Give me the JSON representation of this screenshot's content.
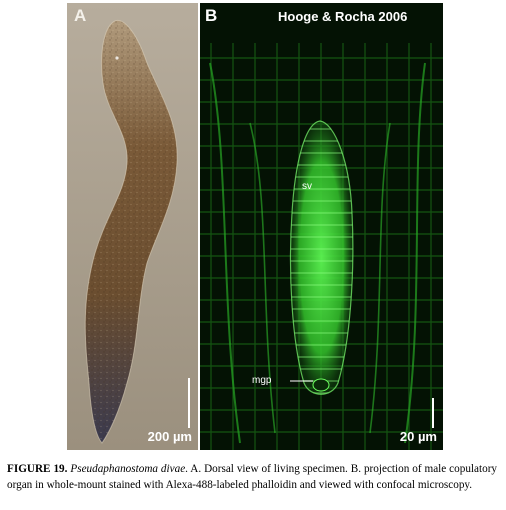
{
  "panel_a": {
    "letter": "A",
    "scale_label": "200 µm"
  },
  "panel_b": {
    "letter": "B",
    "credit": "Hooge & Rocha 2006",
    "label_sv": "sv",
    "label_mgp": "mgp",
    "scale_label": "20 µm"
  },
  "caption": {
    "figure_label": "FIGURE 19.",
    "species": "Pseudaphanostoma divae",
    "text": ". A. Dorsal view of living specimen. B. projection of male copulatory organ in whole-mount stained with Alexa-488-labeled phalloidin and viewed with confocal microscopy."
  },
  "colors": {
    "fluorescence_green": "#3ee03a",
    "specimen_brown": "#6e5233",
    "background_gray": "#a89c8a"
  }
}
